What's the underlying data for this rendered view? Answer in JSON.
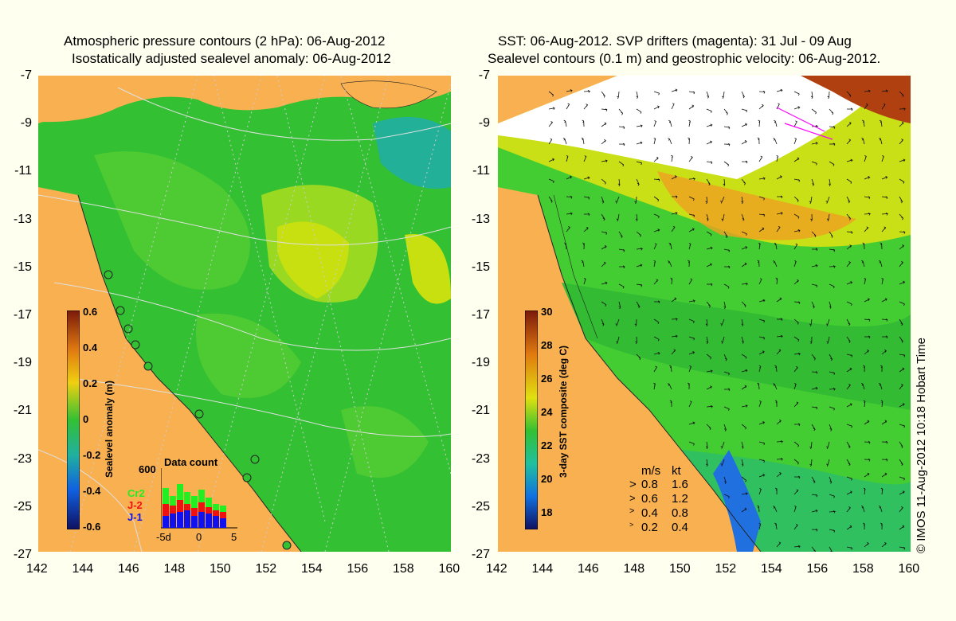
{
  "left_panel": {
    "title_line1": "Atmospheric pressure contours (2 hPa): 06-Aug-2012",
    "title_line2": "Isostatically adjusted sealevel anomaly: 06-Aug-2012",
    "colorbar_label": "Sealevel anomaly (m)",
    "colorbar_ticks": [
      "0.6",
      "0.4",
      "0.2",
      "0",
      "-0.2",
      "-0.4",
      "-0.6"
    ],
    "inset": {
      "title": "Data count",
      "ymax": "600",
      "legend": [
        "Cr2",
        "J-2",
        "J-1"
      ],
      "xticks": [
        "-5d",
        "0",
        "5"
      ],
      "colors": {
        "Cr2": "#22ee22",
        "J-2": "#ee1111",
        "J-1": "#1111ee"
      }
    }
  },
  "right_panel": {
    "title_line1": "SST: 06-Aug-2012. SVP drifters (magenta): 31 Jul - 09 Aug",
    "title_line2": "Sealevel contours (0.1 m) and geostrophic velocity: 06-Aug-2012.",
    "colorbar_label": "3-day SST composite (deg C)",
    "colorbar_ticks": [
      "30",
      "28",
      "26",
      "24",
      "22",
      "20",
      "18"
    ],
    "speed_legend": {
      "header_ms": "m/s",
      "header_kt": "kt",
      "rows": [
        {
          "ms": "0.8",
          "kt": "1.6"
        },
        {
          "ms": "0.6",
          "kt": "1.2"
        },
        {
          "ms": "0.4",
          "kt": "0.8"
        },
        {
          "ms": "0.2",
          "kt": "0.4"
        }
      ]
    }
  },
  "axes": {
    "lat_ticks": [
      "-7",
      "-9",
      "-11",
      "-13",
      "-15",
      "-17",
      "-19",
      "-21",
      "-23",
      "-25",
      "-27"
    ],
    "lon_ticks": [
      "142",
      "144",
      "146",
      "148",
      "150",
      "152",
      "154",
      "156",
      "158",
      "160"
    ]
  },
  "copyright": "© IMOS 11-Aug-2012 10:18 Hobart Time",
  "colors": {
    "land": "#f8b050",
    "background": "#fffff0",
    "ocean_green": "#33cc33"
  }
}
